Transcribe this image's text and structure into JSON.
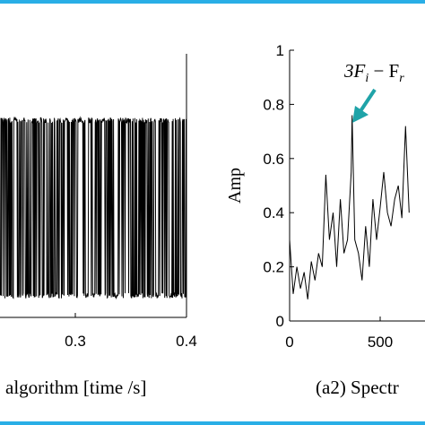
{
  "chart_data": [
    {
      "panel": "a1",
      "type": "line",
      "caption": "algorithm [time /s]",
      "xlabel": "",
      "ylabel": "",
      "xlim": [
        0.2,
        0.4
      ],
      "ylim": [
        -1.15,
        1.15
      ],
      "xticks": [
        "0.3",
        "0.4"
      ],
      "grid": false,
      "signal": {
        "x_start": 0.2,
        "x_end": 0.4,
        "samples": 420,
        "levels": [
          -0.95,
          0.95
        ],
        "description_values": "binary switching signal between two levels"
      }
    },
    {
      "panel": "a2",
      "type": "line",
      "caption": "(a2) Spectr",
      "xlabel": "",
      "ylabel": "Amp",
      "xlim": [
        0,
        1000
      ],
      "ylim": [
        0,
        1
      ],
      "xticks": [
        "0",
        "500"
      ],
      "yticks": [
        "0",
        "0.2",
        "0.4",
        "0.6",
        "0.8",
        "1"
      ],
      "grid": false,
      "annotation": {
        "text": "3F",
        "sub_i": "i",
        "minus": " − F",
        "sub_r": "r",
        "target_x": 345,
        "target_y": 0.76
      },
      "series": [
        {
          "x": [
            0,
            20,
            40,
            60,
            80,
            100,
            120,
            140,
            160,
            180,
            200,
            220,
            240,
            260,
            280,
            300,
            320,
            340,
            345,
            360,
            380,
            400,
            420,
            440,
            460,
            480,
            500,
            520,
            540,
            560,
            580,
            600,
            620,
            640,
            660
          ],
          "y": [
            0.3,
            0.1,
            0.2,
            0.12,
            0.18,
            0.08,
            0.22,
            0.15,
            0.25,
            0.2,
            0.54,
            0.3,
            0.4,
            0.2,
            0.45,
            0.25,
            0.3,
            0.55,
            0.76,
            0.3,
            0.25,
            0.15,
            0.35,
            0.2,
            0.45,
            0.3,
            0.42,
            0.55,
            0.4,
            0.35,
            0.45,
            0.5,
            0.38,
            0.72,
            0.4
          ]
        }
      ]
    }
  ],
  "colors": {
    "frame": "#29aee6",
    "annotation_arrow": "#1fa3a8",
    "trace": "#000000"
  }
}
